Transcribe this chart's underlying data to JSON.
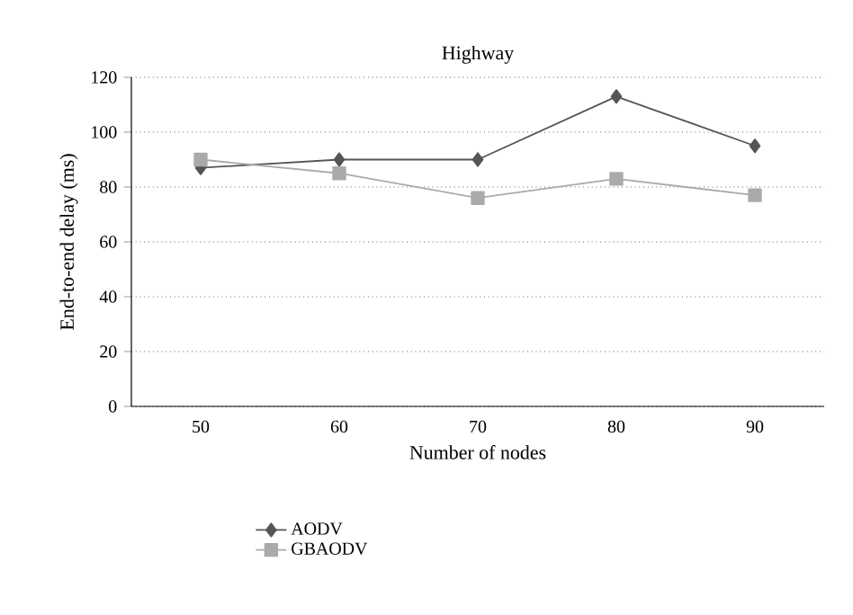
{
  "chart_data": {
    "type": "line",
    "title": "Highway",
    "xlabel": "Number of  nodes",
    "ylabel": "End-to-end delay (ms)",
    "categories": [
      "50",
      "60",
      "70",
      "80",
      "90"
    ],
    "series": [
      {
        "name": "AODV",
        "color": "#555555",
        "marker": "diamond",
        "values": [
          87,
          90,
          90,
          113,
          95
        ]
      },
      {
        "name": "GBAODV",
        "color": "#aaaaaa",
        "marker": "square",
        "values": [
          90,
          85,
          76,
          83,
          77
        ]
      }
    ],
    "ylim": [
      0,
      120
    ],
    "yticks": [
      0,
      20,
      40,
      60,
      80,
      100,
      120
    ],
    "grid": "y",
    "legend": "bottom left"
  }
}
